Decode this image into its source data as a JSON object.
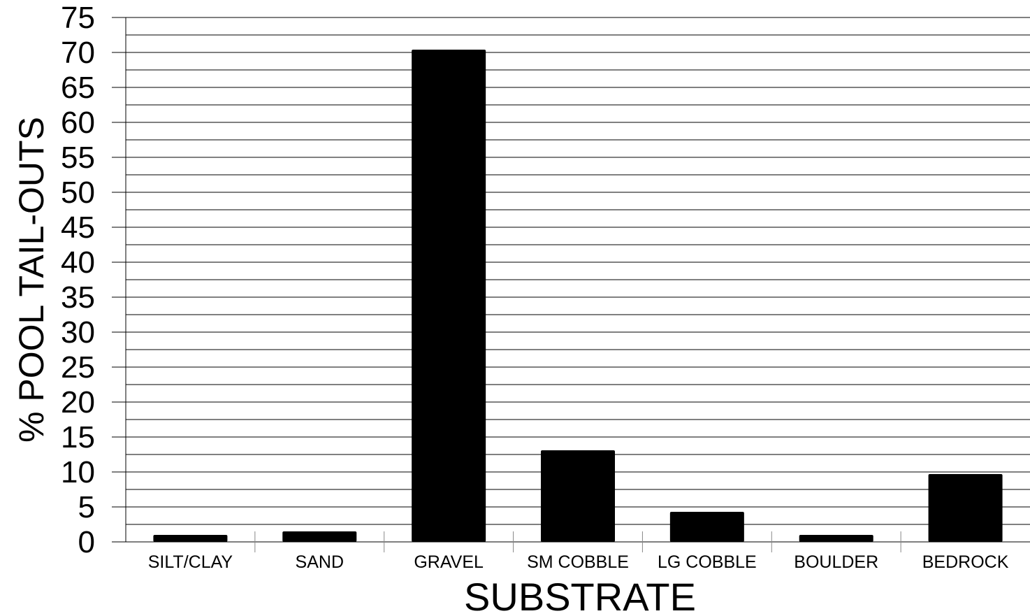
{
  "chart_data": {
    "type": "bar",
    "title": "",
    "xlabel": "SUBSTRATE",
    "ylabel": "% POOL TAIL-OUTS",
    "categories": [
      "SILT/CLAY",
      "SAND",
      "GRAVEL",
      "SM COBBLE",
      "LG COBBLE",
      "BOULDER",
      "BEDROCK"
    ],
    "values": [
      1.0,
      1.5,
      70.4,
      13.1,
      4.3,
      1.0,
      9.7
    ],
    "ylim": [
      0,
      75
    ],
    "yticks": [
      "0",
      "5",
      "10",
      "15",
      "20",
      "25",
      "30",
      "35",
      "40",
      "45",
      "50",
      "55",
      "60",
      "65",
      "70",
      "75"
    ],
    "ytick_values": [
      0,
      5,
      10,
      15,
      20,
      25,
      30,
      35,
      40,
      45,
      50,
      55,
      60,
      65,
      70,
      75
    ],
    "minor_grid_step": 2.5,
    "grid": true,
    "legend": "none",
    "colors": {
      "bar": "#000000",
      "grid": "#000000",
      "background": "#ffffff"
    }
  }
}
